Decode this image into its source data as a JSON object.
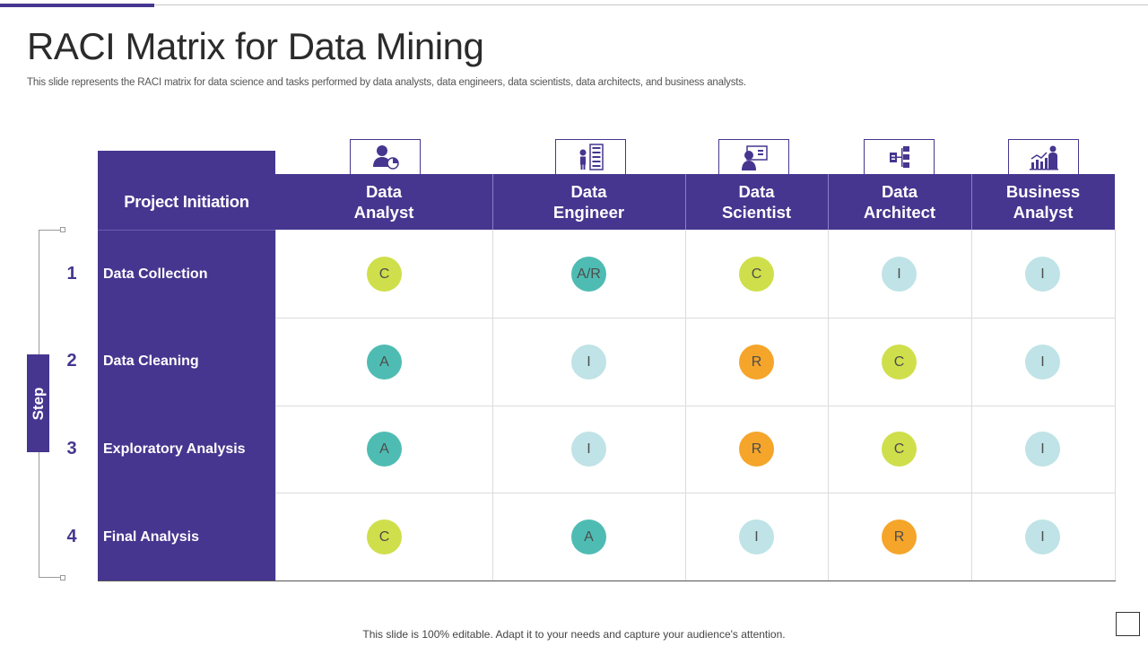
{
  "title": "RACI Matrix for Data Mining",
  "subtitle": "This slide represents the RACI matrix for data science and tasks performed by data analysts, data engineers, data scientists, data architects, and business analysts.",
  "step_label": "Step",
  "header_left": "Project Initiation",
  "colors": {
    "primary": "#46368f",
    "C": "#cfdf4b",
    "A": "#4fbcb3",
    "A/R": "#4fbcb3",
    "R": "#f5a52a",
    "I": "#bfe3e6"
  },
  "columns": [
    {
      "line1": "Data",
      "line2": "Analyst",
      "icon": "analyst-chart-icon"
    },
    {
      "line1": "Data",
      "line2": "Engineer",
      "icon": "engineer-server-icon"
    },
    {
      "line1": "Data",
      "line2": "Scientist",
      "icon": "scientist-screen-icon"
    },
    {
      "line1": "Data",
      "line2": "Architect",
      "icon": "architecture-blocks-icon"
    },
    {
      "line1": "Business",
      "line2": "Analyst",
      "icon": "business-growth-icon"
    }
  ],
  "rows": [
    {
      "num": "1",
      "label": "Data Collection",
      "cells": [
        "C",
        "A/R",
        "C",
        "I",
        "I"
      ]
    },
    {
      "num": "2",
      "label": "Data Cleaning",
      "cells": [
        "A",
        "I",
        "R",
        "C",
        "I"
      ]
    },
    {
      "num": "3",
      "label": "Exploratory Analysis",
      "cells": [
        "A",
        "I",
        "R",
        "C",
        "I"
      ]
    },
    {
      "num": "4",
      "label": "Final Analysis",
      "cells": [
        "C",
        "A",
        "I",
        "R",
        "I"
      ]
    }
  ],
  "footer": "This slide is 100% editable. Adapt it to your needs and capture your audience's attention."
}
